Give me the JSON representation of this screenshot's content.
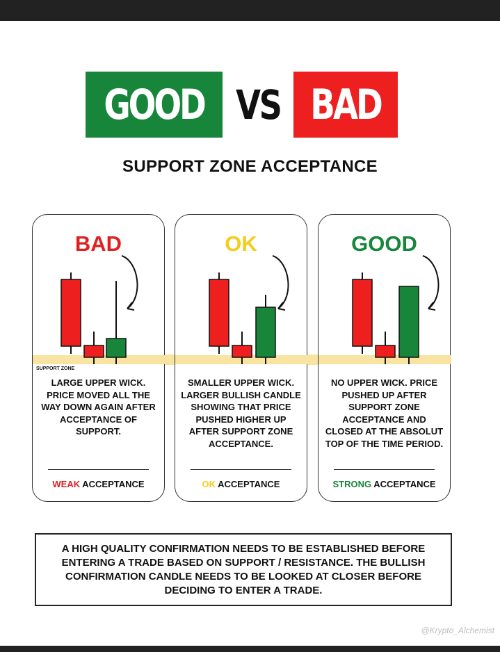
{
  "title": {
    "good": "GOOD",
    "vs": "VS",
    "bad": "BAD"
  },
  "subtitle": "SUPPORT ZONE ACCEPTANCE",
  "support_zone_label": "SUPPORT ZONE",
  "colors": {
    "green": "#17853a",
    "red": "#ee1f1f",
    "yellow": "#f5cc1b",
    "zone": "#f8e4a0"
  },
  "cards": [
    {
      "label": "BAD",
      "text": "LARGE UPPER WICK. PRICE MOVED ALL THE WAY DOWN AGAIN AFTER ACCEPTANCE OF SUPPORT.",
      "foot_strength": "WEAK",
      "foot_rest": " ACCEPTANCE"
    },
    {
      "label": "OK",
      "text": "SMALLER UPPER WICK. LARGER BULLISH CANDLE SHOWING THAT PRICE PUSHED HIGHER UP AFTER SUPPORT ZONE ACCEPTANCE.",
      "foot_strength": "OK",
      "foot_rest": " ACCEPTANCE"
    },
    {
      "label": "GOOD",
      "text": "NO UPPER WICK. PRICE PUSHED UP AFTER SUPPORT ZONE ACCEPTANCE AND CLOSED AT THE ABSOLUT TOP OF THE TIME PERIOD.",
      "foot_strength": "STRONG",
      "foot_rest": " ACCEPTANCE"
    }
  ],
  "note": "A HIGH QUALITY CONFIRMATION NEEDS TO BE ESTABLISHED BEFORE ENTERING A TRADE BASED ON SUPPORT / RESISTANCE. THE BULLISH CONFIRMATION CANDLE NEEDS TO BE LOOKED AT CLOSER BEFORE DECIDING TO ENTER A TRADE.",
  "watermark": "@Krypto_Alchemist"
}
